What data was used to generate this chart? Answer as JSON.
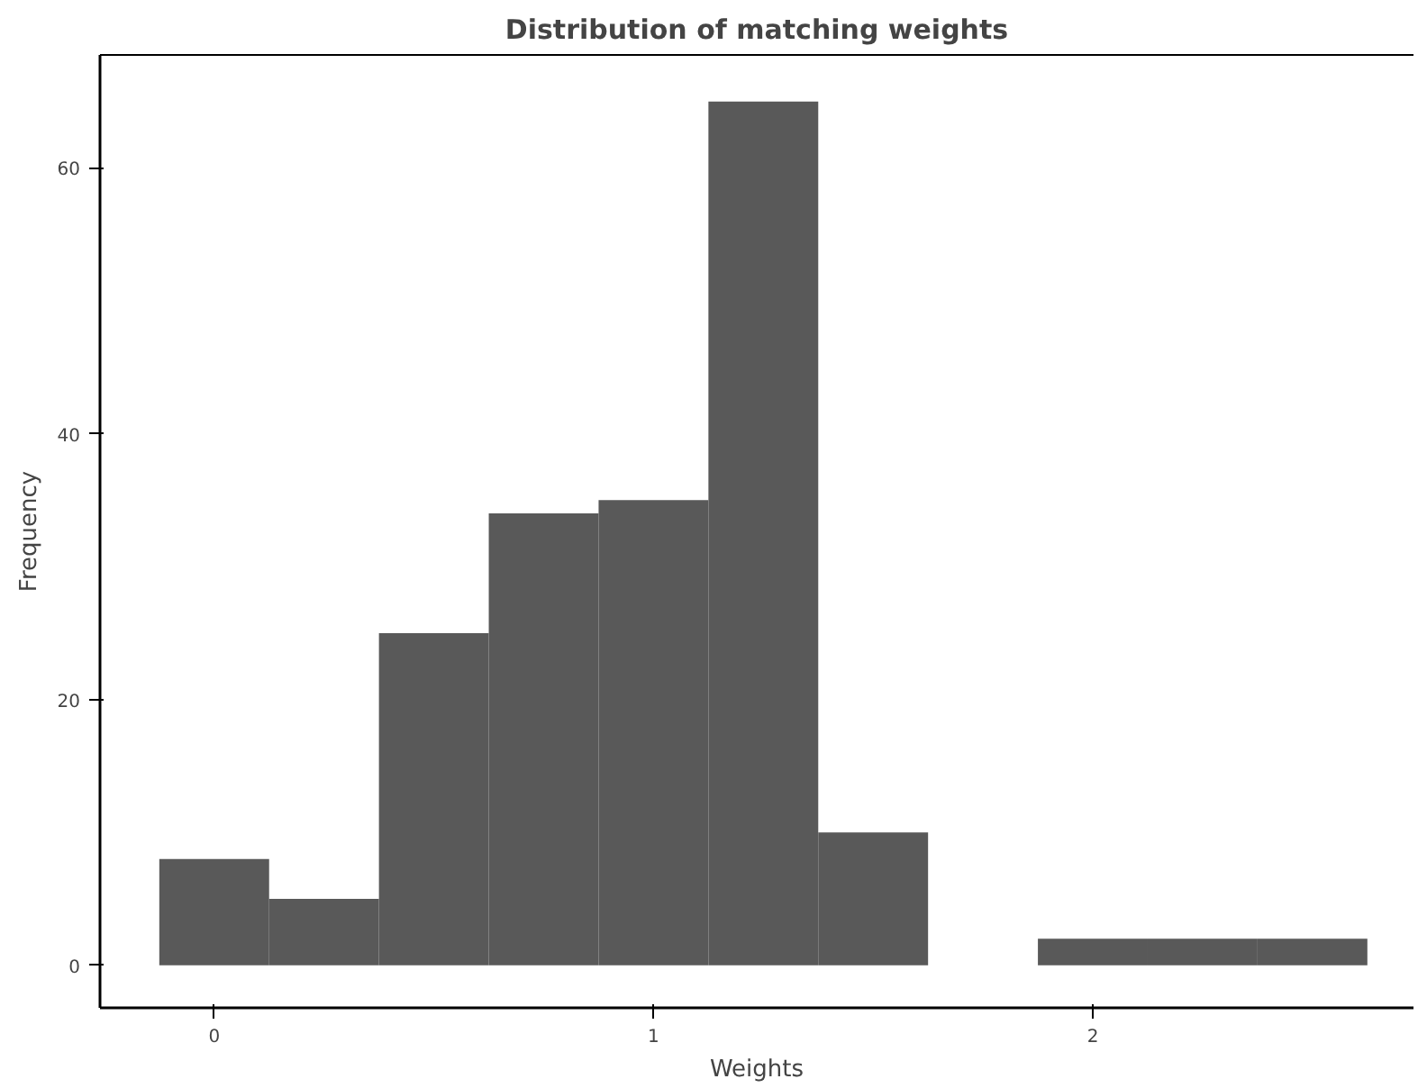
{
  "chart_data": {
    "type": "histogram",
    "title": "Distribution of matching weights",
    "xlabel": "Weights",
    "ylabel": "Frequency",
    "bins": [
      -0.125,
      0.125,
      0.375,
      0.625,
      0.875,
      1.125,
      1.375,
      1.625,
      1.875,
      2.125,
      2.375,
      2.625
    ],
    "values": [
      8,
      5,
      25,
      34,
      35,
      65,
      10,
      0,
      2,
      2,
      2
    ],
    "color": "#595959",
    "xlim": [
      -0.26,
      2.73
    ],
    "ylim": [
      -3.2,
      68.5
    ],
    "xticks": [
      0,
      1,
      2
    ],
    "yticks": [
      0,
      20,
      40,
      60
    ],
    "grid": false
  }
}
